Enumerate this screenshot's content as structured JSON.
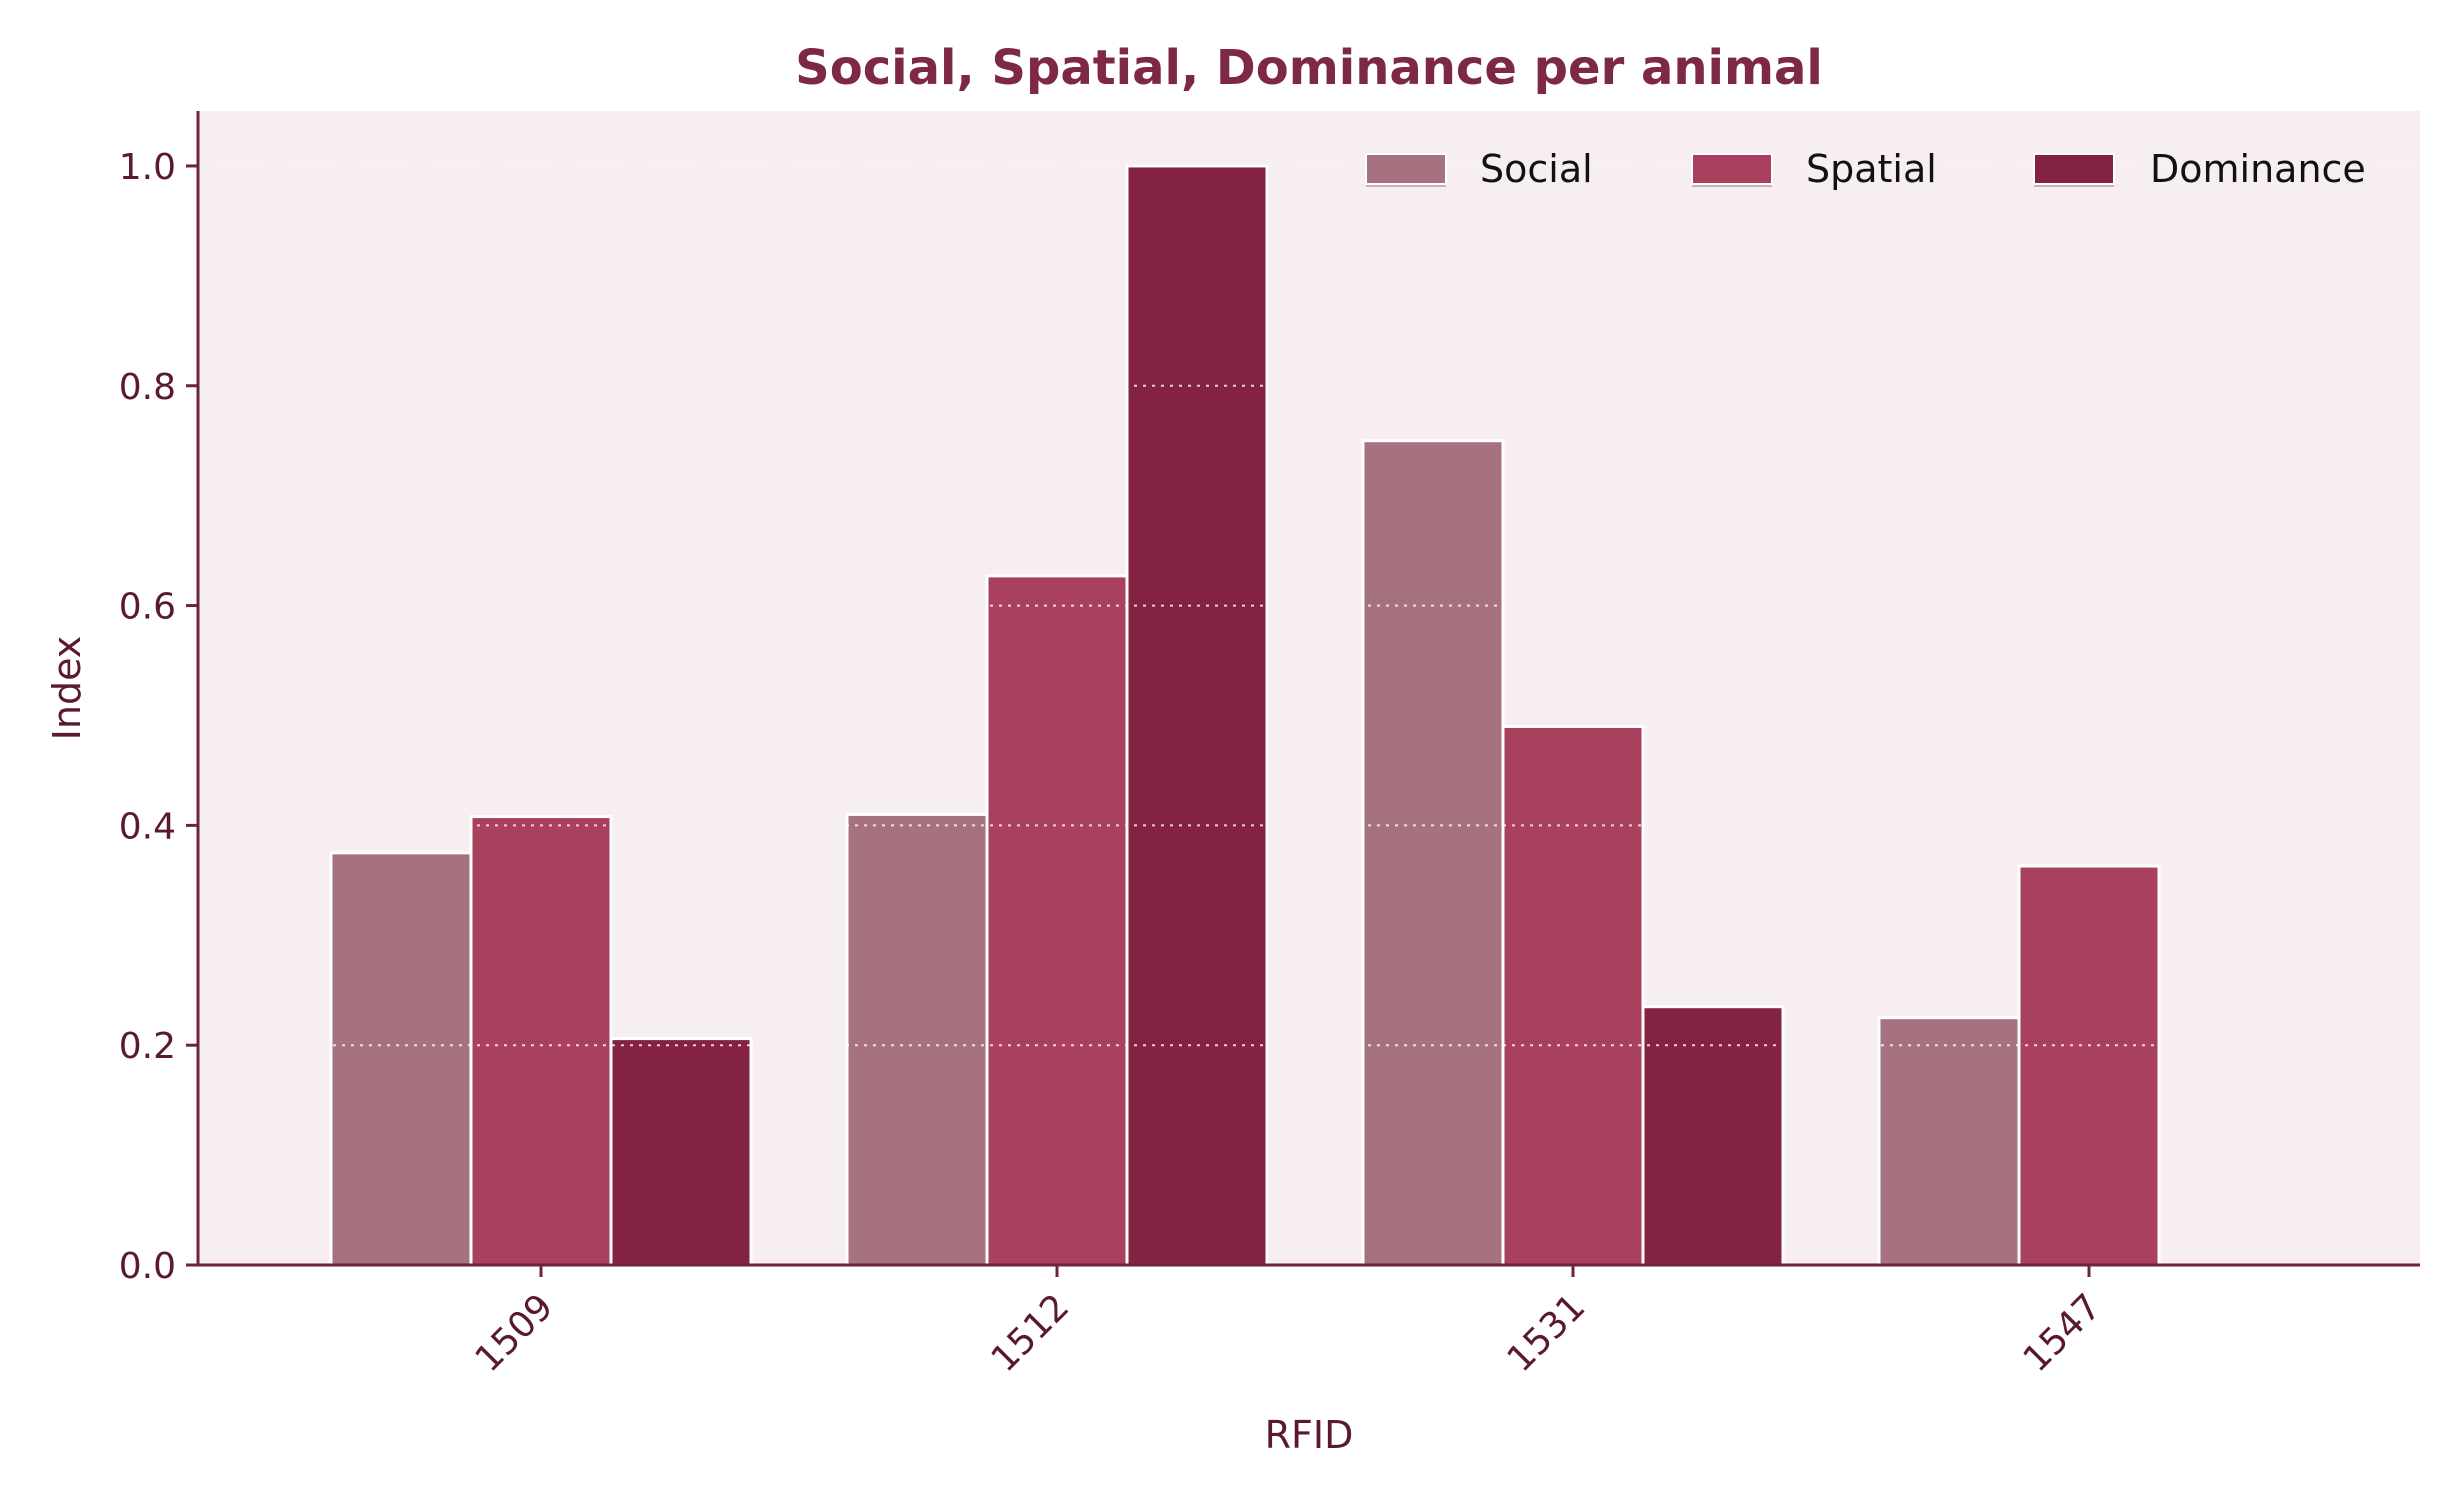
{
  "chart_data": {
    "type": "bar",
    "title": "Social, Spatial, Dominance per animal",
    "xlabel": "RFID",
    "ylabel": "Index",
    "categories": [
      "1509",
      "1512",
      "1531",
      "1547"
    ],
    "series": [
      {
        "name": "Social",
        "color": "#a6727f",
        "values": [
          0.375,
          0.41,
          0.75,
          0.225
        ]
      },
      {
        "name": "Spatial",
        "color": "#a8405e",
        "values": [
          0.408,
          0.627,
          0.49,
          0.363
        ]
      },
      {
        "name": "Dominance",
        "color": "#842341",
        "values": [
          0.206,
          1.0,
          0.235,
          0.0
        ]
      }
    ],
    "ylim": [
      0,
      1.05
    ],
    "yticks": [
      "0.0",
      "0.2",
      "0.4",
      "0.6",
      "0.8",
      "1.0"
    ],
    "grid": "horizontal dotted",
    "legend_position": "top-right",
    "colors": {
      "plot_background": "#f7eef1",
      "axis": "#6b2340",
      "title": "#7d2846"
    }
  }
}
